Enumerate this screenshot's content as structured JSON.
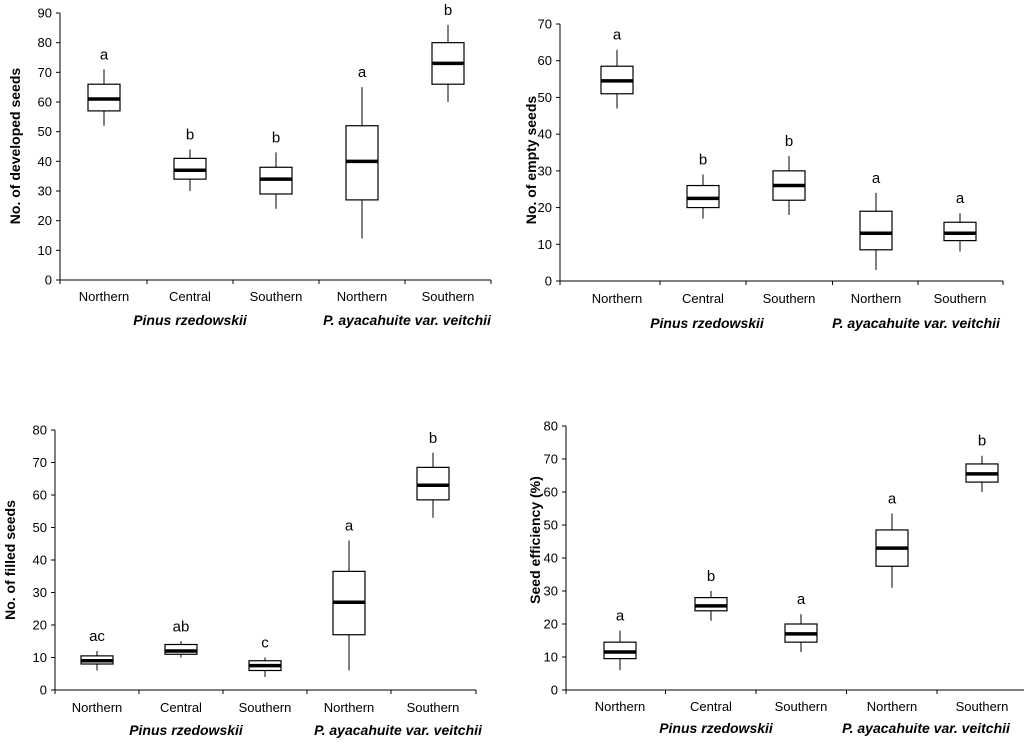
{
  "chart_data": [
    {
      "type": "boxplot",
      "title": "",
      "ylabel": "No. of developed seeds",
      "ylim": [
        0,
        90
      ],
      "yticks": [
        0,
        10,
        20,
        30,
        40,
        50,
        60,
        70,
        80,
        90
      ],
      "categories": [
        "Northern",
        "Central",
        "Southern",
        "Northern",
        "Southern"
      ],
      "groups": [
        "Pinus rzedowskii",
        "P. ayacahuite var. veitchii"
      ],
      "boxes": [
        {
          "min": 52,
          "q1": 57,
          "median": 61,
          "q3": 66,
          "max": 71,
          "letter": "a"
        },
        {
          "min": 30,
          "q1": 34,
          "median": 37,
          "q3": 41,
          "max": 44,
          "letter": "b"
        },
        {
          "min": 24,
          "q1": 29,
          "median": 34,
          "q3": 38,
          "max": 43,
          "letter": "b"
        },
        {
          "min": 14,
          "q1": 27,
          "median": 40,
          "q3": 52,
          "max": 65,
          "letter": "a"
        },
        {
          "min": 60,
          "q1": 66,
          "median": 73,
          "q3": 80,
          "max": 86,
          "letter": "b"
        }
      ]
    },
    {
      "type": "boxplot",
      "title": "",
      "ylabel": "No. of empty seeds",
      "ylim": [
        0,
        70
      ],
      "yticks": [
        0,
        10,
        20,
        30,
        40,
        50,
        60,
        70
      ],
      "categories": [
        "Northern",
        "Central",
        "Southern",
        "Northern",
        "Southern"
      ],
      "groups": [
        "Pinus rzedowskii",
        "P. ayacahuite var. veitchii"
      ],
      "boxes": [
        {
          "min": 47,
          "q1": 51,
          "median": 54.5,
          "q3": 58.5,
          "max": 63,
          "letter": "a"
        },
        {
          "min": 17,
          "q1": 20,
          "median": 22.5,
          "q3": 26,
          "max": 29,
          "letter": "b"
        },
        {
          "min": 18,
          "q1": 22,
          "median": 26,
          "q3": 30,
          "max": 34,
          "letter": "b"
        },
        {
          "min": 3,
          "q1": 8.5,
          "median": 13,
          "q3": 19,
          "max": 24,
          "letter": "a"
        },
        {
          "min": 8,
          "q1": 11,
          "median": 13,
          "q3": 16,
          "max": 18.5,
          "letter": "a"
        }
      ]
    },
    {
      "type": "boxplot",
      "title": "",
      "ylabel": "No. of filled  seeds",
      "ylim": [
        0,
        80
      ],
      "yticks": [
        0,
        10,
        20,
        30,
        40,
        50,
        60,
        70,
        80
      ],
      "categories": [
        "Northern",
        "Central",
        "Southern",
        "Northern",
        "Southern"
      ],
      "groups": [
        "Pinus rzedowskii",
        "P. ayacahuite var. veitchii"
      ],
      "boxes": [
        {
          "min": 6,
          "q1": 8,
          "median": 9,
          "q3": 10.5,
          "max": 12,
          "letter": "ac"
        },
        {
          "min": 10,
          "q1": 11,
          "median": 12,
          "q3": 14,
          "max": 15,
          "letter": "ab"
        },
        {
          "min": 4,
          "q1": 6,
          "median": 7.5,
          "q3": 9,
          "max": 10,
          "letter": "c"
        },
        {
          "min": 6,
          "q1": 17,
          "median": 27,
          "q3": 36.5,
          "max": 46,
          "letter": "a"
        },
        {
          "min": 53,
          "q1": 58.5,
          "median": 63,
          "q3": 68.5,
          "max": 73,
          "letter": "b"
        }
      ]
    },
    {
      "type": "boxplot",
      "title": "",
      "ylabel": "Seed efficiency (%)",
      "ylim": [
        0,
        80
      ],
      "yticks": [
        0,
        10,
        20,
        30,
        40,
        50,
        60,
        70,
        80
      ],
      "categories": [
        "Northern",
        "Central",
        "Southern",
        "Northern",
        "Southern"
      ],
      "groups": [
        "Pinus rzedowskii",
        "P. ayacahuite var. veitchii"
      ],
      "boxes": [
        {
          "min": 6,
          "q1": 9.5,
          "median": 11.5,
          "q3": 14.5,
          "max": 18,
          "letter": "a"
        },
        {
          "min": 21,
          "q1": 24,
          "median": 25.5,
          "q3": 28,
          "max": 30,
          "letter": "b"
        },
        {
          "min": 11.5,
          "q1": 14.5,
          "median": 17,
          "q3": 20,
          "max": 23,
          "letter": "a"
        },
        {
          "min": 31,
          "q1": 37.5,
          "median": 43,
          "q3": 48.5,
          "max": 53.5,
          "letter": "a"
        },
        {
          "min": 60,
          "q1": 63,
          "median": 65.5,
          "q3": 68.5,
          "max": 71,
          "letter": "b"
        }
      ]
    }
  ]
}
